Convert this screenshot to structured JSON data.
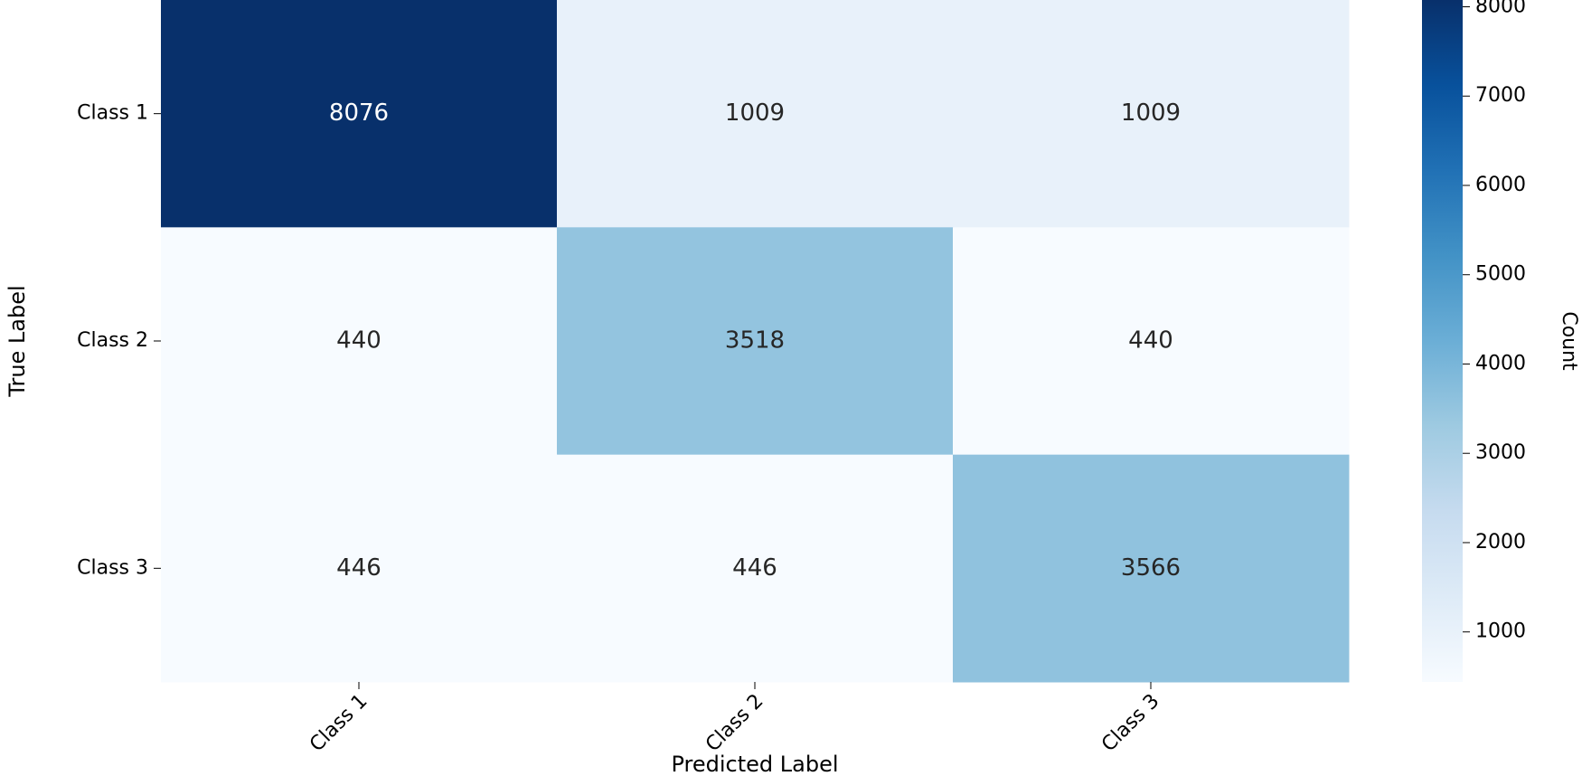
{
  "chart_data": {
    "type": "heatmap",
    "x_label": "Predicted Label",
    "y_label": "True Label",
    "colorbar_label": "Count",
    "x_categories": [
      "Class 1",
      "Class 2",
      "Class 3"
    ],
    "y_categories": [
      "Class 1",
      "Class 2",
      "Class 3"
    ],
    "values": [
      [
        8076,
        1009,
        1009
      ],
      [
        440,
        3518,
        440
      ],
      [
        446,
        446,
        3566
      ]
    ],
    "clim": [
      440,
      8076
    ],
    "colorbar_ticks": [
      1000,
      2000,
      3000,
      4000,
      5000,
      6000,
      7000,
      8000
    ],
    "colormap": [
      "#f7fbff",
      "#deebf7",
      "#c6dbef",
      "#9ecae1",
      "#6baed6",
      "#4292c6",
      "#2171b5",
      "#08519c",
      "#08306b"
    ]
  }
}
